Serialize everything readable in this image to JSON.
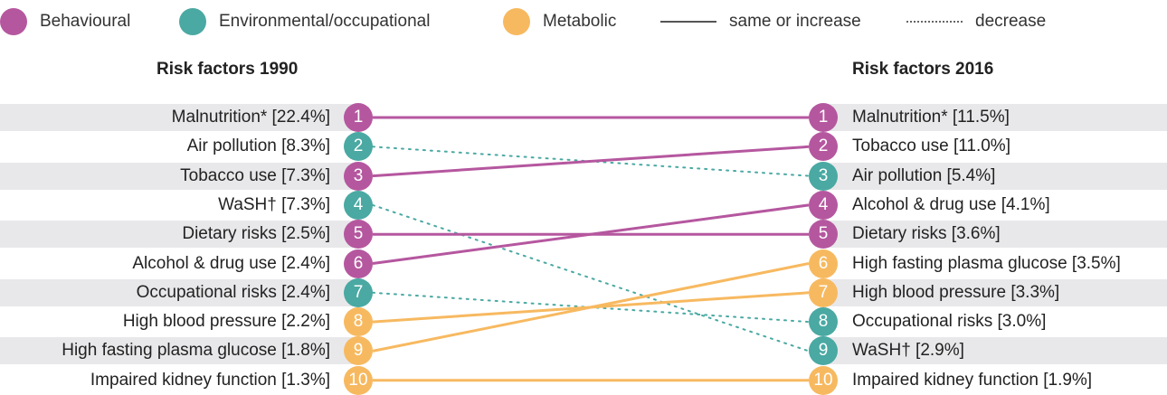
{
  "legend": {
    "behavioural": "Behavioural",
    "environmental": "Environmental/occupational",
    "metabolic": "Metabolic",
    "same_or_increase": "same or increase",
    "decrease": "decrease"
  },
  "colors": {
    "behavioural": "#b5579f",
    "environmental": "#4aa9a2",
    "metabolic": "#f7b960",
    "band": "#e8e8ea"
  },
  "titles": {
    "left": "Risk factors 1990",
    "right": "Risk factors 2016"
  },
  "left": [
    {
      "rank": "1",
      "label": "Malnutrition* [22.4%]",
      "category": "behavioural"
    },
    {
      "rank": "2",
      "label": "Air pollution [8.3%]",
      "category": "environmental"
    },
    {
      "rank": "3",
      "label": "Tobacco use [7.3%]",
      "category": "behavioural"
    },
    {
      "rank": "4",
      "label": "WaSH† [7.3%]",
      "category": "environmental"
    },
    {
      "rank": "5",
      "label": "Dietary risks [2.5%]",
      "category": "behavioural"
    },
    {
      "rank": "6",
      "label": "Alcohol & drug use [2.4%]",
      "category": "behavioural"
    },
    {
      "rank": "7",
      "label": "Occupational risks [2.4%]",
      "category": "environmental"
    },
    {
      "rank": "8",
      "label": "High blood pressure [2.2%]",
      "category": "metabolic"
    },
    {
      "rank": "9",
      "label": "High fasting plasma glucose [1.8%]",
      "category": "metabolic"
    },
    {
      "rank": "10",
      "label": "Impaired kidney function [1.3%]",
      "category": "metabolic"
    }
  ],
  "right": [
    {
      "rank": "1",
      "label": "Malnutrition* [11.5%]",
      "category": "behavioural"
    },
    {
      "rank": "2",
      "label": "Tobacco use [11.0%]",
      "category": "behavioural"
    },
    {
      "rank": "3",
      "label": "Air pollution [5.4%]",
      "category": "environmental"
    },
    {
      "rank": "4",
      "label": "Alcohol & drug use [4.1%]",
      "category": "behavioural"
    },
    {
      "rank": "5",
      "label": "Dietary risks [3.6%]",
      "category": "behavioural"
    },
    {
      "rank": "6",
      "label": "High fasting plasma glucose [3.5%]",
      "category": "metabolic"
    },
    {
      "rank": "7",
      "label": "High blood pressure [3.3%]",
      "category": "metabolic"
    },
    {
      "rank": "8",
      "label": "Occupational risks [3.0%]",
      "category": "environmental"
    },
    {
      "rank": "9",
      "label": "WaSH† [2.9%]",
      "category": "environmental"
    },
    {
      "rank": "10",
      "label": "Impaired kidney function [1.9%]",
      "category": "metabolic"
    }
  ],
  "links": [
    {
      "from": 1,
      "to": 1,
      "style": "solid",
      "category": "behavioural"
    },
    {
      "from": 2,
      "to": 3,
      "style": "dotted",
      "category": "environmental"
    },
    {
      "from": 3,
      "to": 2,
      "style": "solid",
      "category": "behavioural"
    },
    {
      "from": 4,
      "to": 9,
      "style": "dotted",
      "category": "environmental"
    },
    {
      "from": 5,
      "to": 5,
      "style": "solid",
      "category": "behavioural"
    },
    {
      "from": 6,
      "to": 4,
      "style": "solid",
      "category": "behavioural"
    },
    {
      "from": 7,
      "to": 8,
      "style": "dotted",
      "category": "environmental"
    },
    {
      "from": 8,
      "to": 7,
      "style": "solid",
      "category": "metabolic"
    },
    {
      "from": 9,
      "to": 6,
      "style": "solid",
      "category": "metabolic"
    },
    {
      "from": 10,
      "to": 10,
      "style": "solid",
      "category": "metabolic"
    }
  ]
}
